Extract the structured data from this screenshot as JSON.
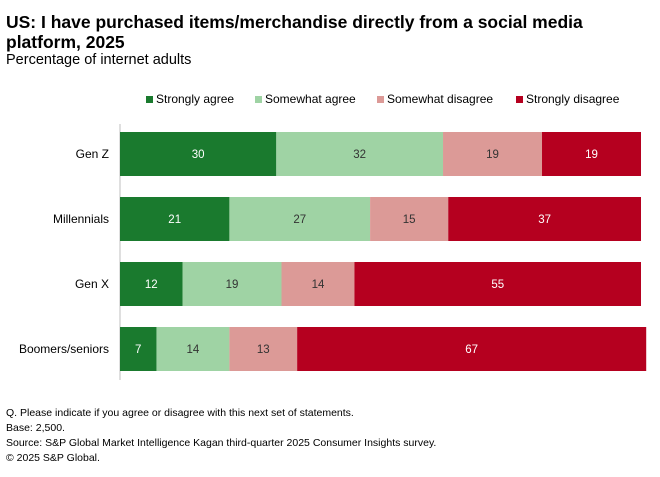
{
  "chart_data": {
    "type": "bar",
    "orientation": "horizontal",
    "stacked": true,
    "title": "US: I have purchased items/merchandise directly from a social media platform, 2025",
    "subtitle": "Percentage of internet adults",
    "categories": [
      "Gen Z",
      "Millennials",
      "Gen X",
      "Boomers/seniors"
    ],
    "series": [
      {
        "name": "Strongly agree",
        "color": "#1a7a2e",
        "values": [
          30,
          21,
          12,
          7
        ]
      },
      {
        "name": "Somewhat agree",
        "color": "#9fd3a4",
        "values": [
          32,
          27,
          19,
          14
        ]
      },
      {
        "name": "Somewhat disagree",
        "color": "#dc9a97",
        "values": [
          19,
          15,
          14,
          13
        ]
      },
      {
        "name": "Strongly disagree",
        "color": "#b5001f",
        "values": [
          19,
          37,
          55,
          67
        ]
      }
    ],
    "xlim": [
      0,
      100
    ],
    "legend_position": "top",
    "label_color_dark": "#ffffff",
    "label_color_light": "#333333",
    "axis_color": "#bfbfbf"
  },
  "footnotes": {
    "question": "Q. Please indicate if you agree or disagree with this next set of statements.",
    "base": "Base: 2,500.",
    "source": "Source: S&P Global Market Intelligence Kagan third-quarter 2025 Consumer Insights survey.",
    "copyright": "© 2025 S&P Global."
  }
}
